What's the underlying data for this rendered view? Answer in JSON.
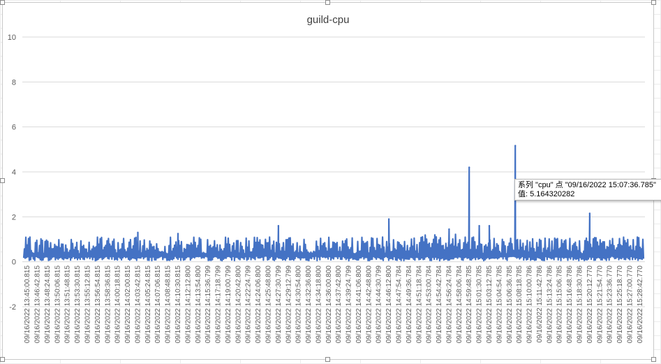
{
  "chart_data": {
    "type": "line",
    "title": "guild-cpu",
    "xlabel": "",
    "ylabel": "",
    "ylim": [
      -2,
      10
    ],
    "yticks": [
      -2,
      0,
      2,
      4,
      6,
      8,
      10
    ],
    "grid": true,
    "legend": "none",
    "line_color": "#4472c4",
    "categories": [
      "09/16/2022 13:45:00.815",
      "09/16/2022 13:46:42.815",
      "09/16/2022 13:48:24.815",
      "09/16/2022 13:50:06.815",
      "09/16/2022 13:51:48.815",
      "09/16/2022 13:53:30.815",
      "09/16/2022 13:55:12.815",
      "09/16/2022 13:56:54.815",
      "09/16/2022 13:58:36.815",
      "09/16/2022 14:00:18.815",
      "09/16/2022 14:02:00.815",
      "09/16/2022 14:03:42.815",
      "09/16/2022 14:05:24.815",
      "09/16/2022 14:07:06.815",
      "09/16/2022 14:08:48.815",
      "09/16/2022 14:10:30.815",
      "09/16/2022 14:12:12.800",
      "09/16/2022 14:13:54.800",
      "09/16/2022 14:15:36.799",
      "09/16/2022 14:17:18.799",
      "09/16/2022 14:19:00.799",
      "09/16/2022 14:20:42.800",
      "09/16/2022 14:22:24.799",
      "09/16/2022 14:24:06.800",
      "09/16/2022 14:25:48.800",
      "09/16/2022 14:27:30.799",
      "09/16/2022 14:29:12.799",
      "09/16/2022 14:30:54.800",
      "09/16/2022 14:32:36.800",
      "09/16/2022 14:34:18.800",
      "09/16/2022 14:36:00.800",
      "09/16/2022 14:37:42.800",
      "09/16/2022 14:39:24.799",
      "09/16/2022 14:41:06.800",
      "09/16/2022 14:42:48.800",
      "09/16/2022 14:44:30.799",
      "09/16/2022 14:46:12.800",
      "09/16/2022 14:47:54.784",
      "09/16/2022 14:49:36.784",
      "09/16/2022 14:51:18.784",
      "09/16/2022 14:53:00.784",
      "09/16/2022 14:54:42.784",
      "09/16/2022 14:56:24.784",
      "09/16/2022 14:58:06.784",
      "09/16/2022 14:59:48.785",
      "09/16/2022 15:01:30.785",
      "09/16/2022 15:03:12.785",
      "09/16/2022 15:04:54.785",
      "09/16/2022 15:06:36.785",
      "09/16/2022 15:08:18.785",
      "09/16/2022 15:10:00.786",
      "09/16/2022 15:11:42.786",
      "09/16/2022 15:13:24.786",
      "09/16/2022 15:15:06.785",
      "09/16/2022 15:16:48.786",
      "09/16/2022 15:18:30.786",
      "09/16/2022 15:20:12.770",
      "09/16/2022 15:21:54.770",
      "09/16/2022 15:23:36.770",
      "09/16/2022 15:25:18.770",
      "09/16/2022 15:27:00.770",
      "09/16/2022 15:28:42.770"
    ],
    "series": [
      {
        "name": "cpu",
        "baseline_range": [
          0,
          1.3
        ],
        "peaks": [
          {
            "x": "09/16/2022 14:03:42.815",
            "y": 1.3
          },
          {
            "x": "09/16/2022 14:10:30.815",
            "y": 1.25
          },
          {
            "x": "09/16/2022 14:27:30.799",
            "y": 1.6
          },
          {
            "x": "09/16/2022 14:46:12.800",
            "y": 1.9
          },
          {
            "x": "09/16/2022 14:56:24.784",
            "y": 1.45
          },
          {
            "x": "09/16/2022 14:59:48.785",
            "y": 4.2
          },
          {
            "x": "09/16/2022 15:01:30.785",
            "y": 1.6
          },
          {
            "x": "09/16/2022 15:03:12.785",
            "y": 1.6
          },
          {
            "x": "09/16/2022 15:07:36.785",
            "y": 5.164320282
          },
          {
            "x": "09/16/2022 15:20:12.770",
            "y": 2.15
          }
        ]
      }
    ]
  },
  "tooltip": {
    "line1": "系列 \"cpu\" 点 \"09/16/2022 15:07:36.785\"",
    "line2": "值: 5.164320282"
  }
}
